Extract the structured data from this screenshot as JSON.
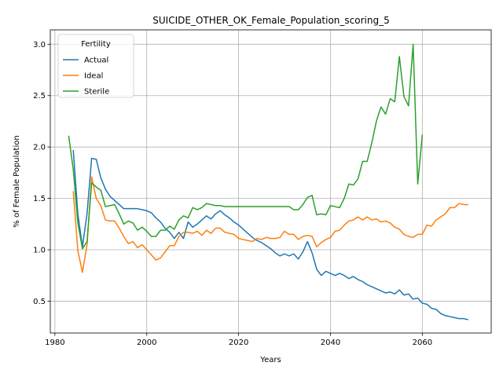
{
  "chart_data": {
    "type": "line",
    "title": "SUICIDE_OTHER_OK_Female_Population_scoring_5",
    "xlabel": "Years",
    "ylabel": "% of Female Population",
    "xlim": [
      1979,
      2075
    ],
    "ylim": [
      0.19,
      3.14
    ],
    "xticks": [
      1980,
      2000,
      2020,
      2040,
      2060
    ],
    "yticks": [
      0.5,
      1.0,
      1.5,
      2.0,
      2.5,
      3.0
    ],
    "grid": true,
    "legend": {
      "title": "Fertility",
      "placement": "top-left"
    },
    "series": [
      {
        "name": "Actual",
        "color": "#1f77b4",
        "points": [
          [
            1984,
            1.97
          ],
          [
            1985,
            1.35
          ],
          [
            1986,
            1.03
          ],
          [
            1987,
            1.35
          ],
          [
            1988,
            1.89
          ],
          [
            1989,
            1.88
          ],
          [
            1990,
            1.7
          ],
          [
            1991,
            1.59
          ],
          [
            1992,
            1.52
          ],
          [
            1993,
            1.48
          ],
          [
            1994,
            1.44
          ],
          [
            1995,
            1.4
          ],
          [
            1996,
            1.4
          ],
          [
            1997,
            1.4
          ],
          [
            1998,
            1.4
          ],
          [
            1999,
            1.39
          ],
          [
            2000,
            1.38
          ],
          [
            2001,
            1.36
          ],
          [
            2002,
            1.31
          ],
          [
            2003,
            1.27
          ],
          [
            2004,
            1.21
          ],
          [
            2005,
            1.17
          ],
          [
            2006,
            1.11
          ],
          [
            2007,
            1.17
          ],
          [
            2008,
            1.11
          ],
          [
            2009,
            1.27
          ],
          [
            2010,
            1.22
          ],
          [
            2011,
            1.25
          ],
          [
            2012,
            1.29
          ],
          [
            2013,
            1.33
          ],
          [
            2014,
            1.3
          ],
          [
            2015,
            1.35
          ],
          [
            2016,
            1.38
          ],
          [
            2017,
            1.34
          ],
          [
            2018,
            1.31
          ],
          [
            2019,
            1.27
          ],
          [
            2020,
            1.24
          ],
          [
            2021,
            1.2
          ],
          [
            2022,
            1.16
          ],
          [
            2023,
            1.12
          ],
          [
            2024,
            1.09
          ],
          [
            2025,
            1.07
          ],
          [
            2026,
            1.04
          ],
          [
            2027,
            1.01
          ],
          [
            2028,
            0.97
          ],
          [
            2029,
            0.94
          ],
          [
            2030,
            0.96
          ],
          [
            2031,
            0.94
          ],
          [
            2032,
            0.96
          ],
          [
            2033,
            0.91
          ],
          [
            2034,
            0.98
          ],
          [
            2035,
            1.08
          ],
          [
            2036,
            0.97
          ],
          [
            2037,
            0.81
          ],
          [
            2038,
            0.75
          ],
          [
            2039,
            0.79
          ],
          [
            2040,
            0.77
          ],
          [
            2041,
            0.75
          ],
          [
            2042,
            0.77
          ],
          [
            2043,
            0.75
          ],
          [
            2044,
            0.72
          ],
          [
            2045,
            0.74
          ],
          [
            2046,
            0.71
          ],
          [
            2047,
            0.69
          ],
          [
            2048,
            0.66
          ],
          [
            2049,
            0.64
          ],
          [
            2050,
            0.62
          ],
          [
            2051,
            0.6
          ],
          [
            2052,
            0.58
          ],
          [
            2053,
            0.59
          ],
          [
            2054,
            0.57
          ],
          [
            2055,
            0.61
          ],
          [
            2056,
            0.56
          ],
          [
            2057,
            0.57
          ],
          [
            2058,
            0.52
          ],
          [
            2059,
            0.53
          ],
          [
            2060,
            0.48
          ],
          [
            2061,
            0.47
          ],
          [
            2062,
            0.43
          ],
          [
            2063,
            0.42
          ],
          [
            2064,
            0.38
          ],
          [
            2065,
            0.36
          ],
          [
            2066,
            0.35
          ],
          [
            2067,
            0.34
          ],
          [
            2068,
            0.33
          ],
          [
            2069,
            0.33
          ],
          [
            2070,
            0.32
          ]
        ]
      },
      {
        "name": "Ideal",
        "color": "#ff7f0e",
        "points": [
          [
            1984,
            1.57
          ],
          [
            1985,
            0.99
          ],
          [
            1986,
            0.78
          ],
          [
            1987,
            1.05
          ],
          [
            1988,
            1.71
          ],
          [
            1989,
            1.5
          ],
          [
            1990,
            1.43
          ],
          [
            1991,
            1.29
          ],
          [
            1992,
            1.28
          ],
          [
            1993,
            1.28
          ],
          [
            1994,
            1.21
          ],
          [
            1995,
            1.13
          ],
          [
            1996,
            1.06
          ],
          [
            1997,
            1.08
          ],
          [
            1998,
            1.02
          ],
          [
            1999,
            1.05
          ],
          [
            2000,
            1.0
          ],
          [
            2001,
            0.95
          ],
          [
            2002,
            0.9
          ],
          [
            2003,
            0.92
          ],
          [
            2004,
            0.98
          ],
          [
            2005,
            1.04
          ],
          [
            2006,
            1.04
          ],
          [
            2007,
            1.13
          ],
          [
            2008,
            1.17
          ],
          [
            2009,
            1.17
          ],
          [
            2010,
            1.16
          ],
          [
            2011,
            1.18
          ],
          [
            2012,
            1.14
          ],
          [
            2013,
            1.19
          ],
          [
            2014,
            1.16
          ],
          [
            2015,
            1.21
          ],
          [
            2016,
            1.21
          ],
          [
            2017,
            1.17
          ],
          [
            2018,
            1.16
          ],
          [
            2019,
            1.15
          ],
          [
            2020,
            1.11
          ],
          [
            2021,
            1.1
          ],
          [
            2022,
            1.09
          ],
          [
            2023,
            1.08
          ],
          [
            2024,
            1.11
          ],
          [
            2025,
            1.1
          ],
          [
            2026,
            1.12
          ],
          [
            2027,
            1.11
          ],
          [
            2028,
            1.11
          ],
          [
            2029,
            1.12
          ],
          [
            2030,
            1.18
          ],
          [
            2031,
            1.15
          ],
          [
            2032,
            1.15
          ],
          [
            2033,
            1.1
          ],
          [
            2034,
            1.13
          ],
          [
            2035,
            1.14
          ],
          [
            2036,
            1.13
          ],
          [
            2037,
            1.03
          ],
          [
            2038,
            1.07
          ],
          [
            2039,
            1.1
          ],
          [
            2040,
            1.12
          ],
          [
            2041,
            1.18
          ],
          [
            2042,
            1.19
          ],
          [
            2043,
            1.24
          ],
          [
            2044,
            1.28
          ],
          [
            2045,
            1.29
          ],
          [
            2046,
            1.32
          ],
          [
            2047,
            1.29
          ],
          [
            2048,
            1.32
          ],
          [
            2049,
            1.29
          ],
          [
            2050,
            1.3
          ],
          [
            2051,
            1.27
          ],
          [
            2052,
            1.28
          ],
          [
            2053,
            1.26
          ],
          [
            2054,
            1.22
          ],
          [
            2055,
            1.2
          ],
          [
            2056,
            1.15
          ],
          [
            2057,
            1.13
          ],
          [
            2058,
            1.12
          ],
          [
            2059,
            1.15
          ],
          [
            2060,
            1.15
          ],
          [
            2061,
            1.24
          ],
          [
            2062,
            1.23
          ],
          [
            2063,
            1.29
          ],
          [
            2064,
            1.32
          ],
          [
            2065,
            1.35
          ],
          [
            2066,
            1.41
          ],
          [
            2067,
            1.41
          ],
          [
            2068,
            1.45
          ],
          [
            2069,
            1.44
          ],
          [
            2070,
            1.44
          ]
        ]
      },
      {
        "name": "Sterile",
        "color": "#2ca02c",
        "points": [
          [
            1983,
            2.11
          ],
          [
            1984,
            1.78
          ],
          [
            1985,
            1.26
          ],
          [
            1986,
            1.01
          ],
          [
            1987,
            1.08
          ],
          [
            1988,
            1.65
          ],
          [
            1989,
            1.61
          ],
          [
            1990,
            1.58
          ],
          [
            1991,
            1.42
          ],
          [
            1992,
            1.43
          ],
          [
            1993,
            1.44
          ],
          [
            1994,
            1.35
          ],
          [
            1995,
            1.25
          ],
          [
            1996,
            1.28
          ],
          [
            1997,
            1.26
          ],
          [
            1998,
            1.19
          ],
          [
            1999,
            1.22
          ],
          [
            2000,
            1.18
          ],
          [
            2001,
            1.13
          ],
          [
            2002,
            1.13
          ],
          [
            2003,
            1.19
          ],
          [
            2004,
            1.19
          ],
          [
            2005,
            1.23
          ],
          [
            2006,
            1.2
          ],
          [
            2007,
            1.29
          ],
          [
            2008,
            1.33
          ],
          [
            2009,
            1.31
          ],
          [
            2010,
            1.41
          ],
          [
            2011,
            1.39
          ],
          [
            2012,
            1.41
          ],
          [
            2013,
            1.45
          ],
          [
            2014,
            1.44
          ],
          [
            2015,
            1.43
          ],
          [
            2016,
            1.43
          ],
          [
            2017,
            1.42
          ],
          [
            2018,
            1.42
          ],
          [
            2019,
            1.42
          ],
          [
            2020,
            1.42
          ],
          [
            2021,
            1.42
          ],
          [
            2022,
            1.42
          ],
          [
            2023,
            1.42
          ],
          [
            2024,
            1.42
          ],
          [
            2025,
            1.42
          ],
          [
            2026,
            1.42
          ],
          [
            2027,
            1.42
          ],
          [
            2028,
            1.42
          ],
          [
            2029,
            1.42
          ],
          [
            2030,
            1.42
          ],
          [
            2031,
            1.42
          ],
          [
            2032,
            1.39
          ],
          [
            2033,
            1.39
          ],
          [
            2034,
            1.44
          ],
          [
            2035,
            1.51
          ],
          [
            2036,
            1.53
          ],
          [
            2037,
            1.34
          ],
          [
            2038,
            1.35
          ],
          [
            2039,
            1.34
          ],
          [
            2040,
            1.43
          ],
          [
            2041,
            1.42
          ],
          [
            2042,
            1.41
          ],
          [
            2043,
            1.5
          ],
          [
            2044,
            1.64
          ],
          [
            2045,
            1.63
          ],
          [
            2046,
            1.69
          ],
          [
            2047,
            1.86
          ],
          [
            2048,
            1.86
          ],
          [
            2049,
            2.04
          ],
          [
            2050,
            2.25
          ],
          [
            2051,
            2.39
          ],
          [
            2052,
            2.32
          ],
          [
            2053,
            2.47
          ],
          [
            2054,
            2.44
          ],
          [
            2055,
            2.88
          ],
          [
            2056,
            2.49
          ],
          [
            2057,
            2.4
          ],
          [
            2058,
            3.0
          ],
          [
            2059,
            1.64
          ],
          [
            2060,
            2.12
          ]
        ]
      }
    ]
  }
}
